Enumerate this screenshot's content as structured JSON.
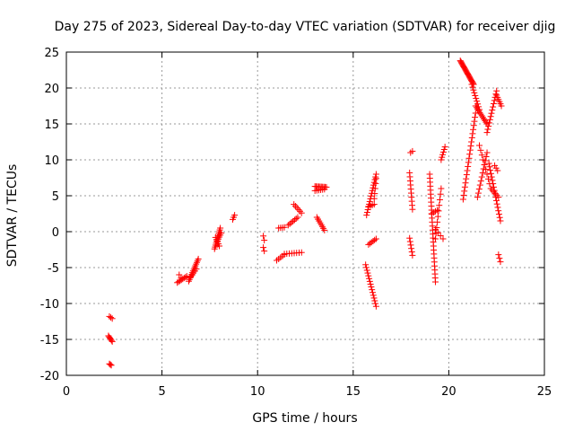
{
  "chart_data": {
    "type": "scatter",
    "title": "Day 275 of 2023, Sidereal Day-to-day VTEC variation (SDTVAR) for receiver djig",
    "xlabel": "GPS time / hours",
    "ylabel": "SDTVAR / TECUs",
    "xlim": [
      0,
      25
    ],
    "ylim": [
      -20,
      25
    ],
    "xticks": [
      "0",
      "5",
      "10",
      "15",
      "20",
      "25"
    ],
    "yticks": [
      "-20",
      "-15",
      "-10",
      "-5",
      "0",
      "5",
      "10",
      "15",
      "20",
      "25"
    ],
    "grid": true,
    "marker": "+",
    "color": "#ff0000",
    "segments": [
      {
        "x0": 2.25,
        "y0": -11.8,
        "x1": 2.4,
        "y1": -12.1,
        "n": 3
      },
      {
        "x0": 2.2,
        "y0": -14.5,
        "x1": 2.4,
        "y1": -15.3,
        "n": 6
      },
      {
        "x0": 2.25,
        "y0": -18.4,
        "x1": 2.35,
        "y1": -18.6,
        "n": 3
      },
      {
        "x0": 5.8,
        "y0": -7.1,
        "x1": 6.3,
        "y1": -6.2,
        "n": 8
      },
      {
        "x0": 5.9,
        "y0": -6.0,
        "x1": 6.0,
        "y1": -6.4,
        "n": 2
      },
      {
        "x0": 6.4,
        "y0": -6.9,
        "x1": 6.9,
        "y1": -3.8,
        "n": 14
      },
      {
        "x0": 6.5,
        "y0": -6.3,
        "x1": 6.8,
        "y1": -5.2,
        "n": 5
      },
      {
        "x0": 7.75,
        "y0": -2.4,
        "x1": 8.05,
        "y1": 0.5,
        "n": 12
      },
      {
        "x0": 7.8,
        "y0": -0.8,
        "x1": 8.0,
        "y1": -2.0,
        "n": 5
      },
      {
        "x0": 7.9,
        "y0": -1.3,
        "x1": 8.1,
        "y1": -0.2,
        "n": 5
      },
      {
        "x0": 8.7,
        "y0": 1.7,
        "x1": 8.8,
        "y1": 2.3,
        "n": 3
      },
      {
        "x0": 10.3,
        "y0": -0.6,
        "x1": 10.35,
        "y1": -1.2,
        "n": 2
      },
      {
        "x0": 10.3,
        "y0": -2.2,
        "x1": 10.35,
        "y1": -2.7,
        "n": 2
      },
      {
        "x0": 11.0,
        "y0": -4.0,
        "x1": 11.4,
        "y1": -3.2,
        "n": 5
      },
      {
        "x0": 11.1,
        "y0": 0.5,
        "x1": 11.4,
        "y1": 0.6,
        "n": 4
      },
      {
        "x0": 11.4,
        "y0": -3.1,
        "x1": 12.3,
        "y1": -2.9,
        "n": 8
      },
      {
        "x0": 11.6,
        "y0": 0.9,
        "x1": 12.1,
        "y1": 2.0,
        "n": 7
      },
      {
        "x0": 11.9,
        "y0": 3.8,
        "x1": 12.3,
        "y1": 2.6,
        "n": 6
      },
      {
        "x0": 13.0,
        "y0": 6.3,
        "x1": 13.6,
        "y1": 6.2,
        "n": 10
      },
      {
        "x0": 13.0,
        "y0": 5.7,
        "x1": 13.5,
        "y1": 5.9,
        "n": 6
      },
      {
        "x0": 13.1,
        "y0": 2.0,
        "x1": 13.5,
        "y1": 0.2,
        "n": 8
      },
      {
        "x0": 15.7,
        "y0": 2.3,
        "x1": 16.2,
        "y1": 8.0,
        "n": 16
      },
      {
        "x0": 15.8,
        "y0": 3.5,
        "x1": 16.1,
        "y1": 3.8,
        "n": 4
      },
      {
        "x0": 16.1,
        "y0": 4.6,
        "x1": 16.2,
        "y1": 7.4,
        "n": 5
      },
      {
        "x0": 15.8,
        "y0": -1.8,
        "x1": 16.2,
        "y1": -1.0,
        "n": 6
      },
      {
        "x0": 15.65,
        "y0": -4.6,
        "x1": 16.2,
        "y1": -10.4,
        "n": 16
      },
      {
        "x0": 17.95,
        "y0": 8.2,
        "x1": 18.1,
        "y1": 3.1,
        "n": 10
      },
      {
        "x0": 18.0,
        "y0": 11.0,
        "x1": 18.1,
        "y1": 11.2,
        "n": 2
      },
      {
        "x0": 17.95,
        "y0": -0.9,
        "x1": 18.1,
        "y1": -3.3,
        "n": 6
      },
      {
        "x0": 19.0,
        "y0": 8.0,
        "x1": 19.3,
        "y1": -7.0,
        "n": 28
      },
      {
        "x0": 19.1,
        "y0": 2.5,
        "x1": 19.4,
        "y1": 3.0,
        "n": 4
      },
      {
        "x0": 19.3,
        "y0": -1.0,
        "x1": 19.6,
        "y1": 6.0,
        "n": 10
      },
      {
        "x0": 19.3,
        "y0": 0.3,
        "x1": 19.7,
        "y1": -1.0,
        "n": 4
      },
      {
        "x0": 19.6,
        "y0": 10.0,
        "x1": 19.8,
        "y1": 11.8,
        "n": 6
      },
      {
        "x0": 20.6,
        "y0": 23.8,
        "x1": 21.3,
        "y1": 20.5,
        "n": 24
      },
      {
        "x0": 21.2,
        "y0": 20.5,
        "x1": 21.6,
        "y1": 17.0,
        "n": 10
      },
      {
        "x0": 20.75,
        "y0": 4.5,
        "x1": 21.4,
        "y1": 16.5,
        "n": 22
      },
      {
        "x0": 21.4,
        "y0": 17.5,
        "x1": 22.0,
        "y1": 15.0,
        "n": 12
      },
      {
        "x0": 21.5,
        "y0": 4.8,
        "x1": 22.0,
        "y1": 11.0,
        "n": 12
      },
      {
        "x0": 22.0,
        "y0": 13.8,
        "x1": 22.5,
        "y1": 19.6,
        "n": 14
      },
      {
        "x0": 22.5,
        "y0": 19.0,
        "x1": 22.75,
        "y1": 17.5,
        "n": 6
      },
      {
        "x0": 21.6,
        "y0": 12.0,
        "x1": 22.2,
        "y1": 6.0,
        "n": 10
      },
      {
        "x0": 22.1,
        "y0": 9.5,
        "x1": 22.7,
        "y1": 1.5,
        "n": 18
      },
      {
        "x0": 22.2,
        "y0": 6.0,
        "x1": 22.6,
        "y1": 4.8,
        "n": 6
      },
      {
        "x0": 22.4,
        "y0": 9.2,
        "x1": 22.55,
        "y1": 8.5,
        "n": 3
      },
      {
        "x0": 22.6,
        "y0": -3.2,
        "x1": 22.7,
        "y1": -4.2,
        "n": 3
      }
    ]
  }
}
